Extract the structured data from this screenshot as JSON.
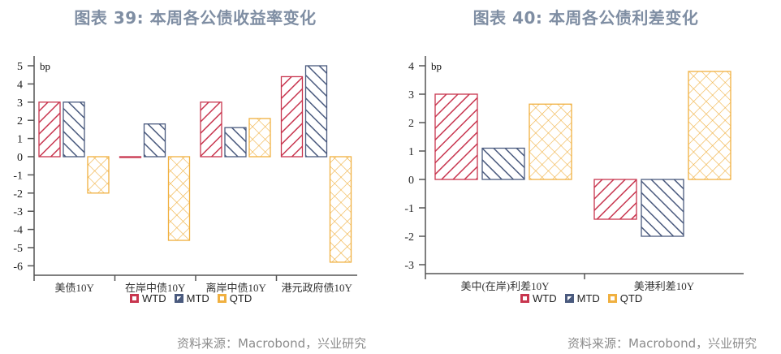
{
  "colors": {
    "wtd": "#c8364f",
    "mtd": "#4a5a7e",
    "qtd": "#f0b040",
    "title": "#7f8ea3",
    "source": "#8c8c8c"
  },
  "left": {
    "title": "图表 39: 本周各公债收益率变化",
    "source": "资料来源：Macrobond，兴业研究",
    "unit": "bp",
    "legend": [
      "WTD",
      "MTD",
      "QTD"
    ],
    "yticks": [
      "5",
      "4",
      "3",
      "2",
      "1",
      "0",
      "-1",
      "-2",
      "-3",
      "-4",
      "-5",
      "-6"
    ],
    "categories": [
      "美债10Y",
      "在岸中债10Y",
      "离岸中债10Y",
      "港元政府债10Y"
    ]
  },
  "right": {
    "title": "图表 40: 本周各公债利差变化",
    "source": "资料来源：Macrobond，兴业研究",
    "unit": "bp",
    "legend": [
      "WTD",
      "MTD",
      "QTD"
    ],
    "yticks": [
      "4",
      "3",
      "2",
      "1",
      "0",
      "-1",
      "-2",
      "-3"
    ],
    "categories": [
      "美中(在岸)利差10Y",
      "美港利差10Y"
    ]
  },
  "chart_data": [
    {
      "type": "bar",
      "title": "图表 39: 本周各公债收益率变化",
      "ylabel": "bp",
      "xlabel": "",
      "categories": [
        "美债10Y",
        "在岸中债10Y",
        "离岸中债10Y",
        "港元政府债10Y"
      ],
      "series": [
        {
          "name": "WTD",
          "values": [
            3.0,
            0.0,
            3.0,
            4.4
          ]
        },
        {
          "name": "MTD",
          "values": [
            3.0,
            1.8,
            1.6,
            5.0
          ]
        },
        {
          "name": "QTD",
          "values": [
            -2.0,
            -4.6,
            2.1,
            -5.8
          ]
        }
      ],
      "ylim": [
        -6.5,
        5.5
      ],
      "grid": false,
      "legend_position": "bottom"
    },
    {
      "type": "bar",
      "title": "图表 40: 本周各公债利差变化",
      "ylabel": "bp",
      "xlabel": "",
      "categories": [
        "美中(在岸)利差10Y",
        "美港利差10Y"
      ],
      "series": [
        {
          "name": "WTD",
          "values": [
            3.0,
            -1.4
          ]
        },
        {
          "name": "MTD",
          "values": [
            1.1,
            -2.0
          ]
        },
        {
          "name": "QTD",
          "values": [
            2.65,
            3.8
          ]
        }
      ],
      "ylim": [
        -3.3,
        4.3
      ],
      "grid": false,
      "legend_position": "bottom"
    }
  ]
}
